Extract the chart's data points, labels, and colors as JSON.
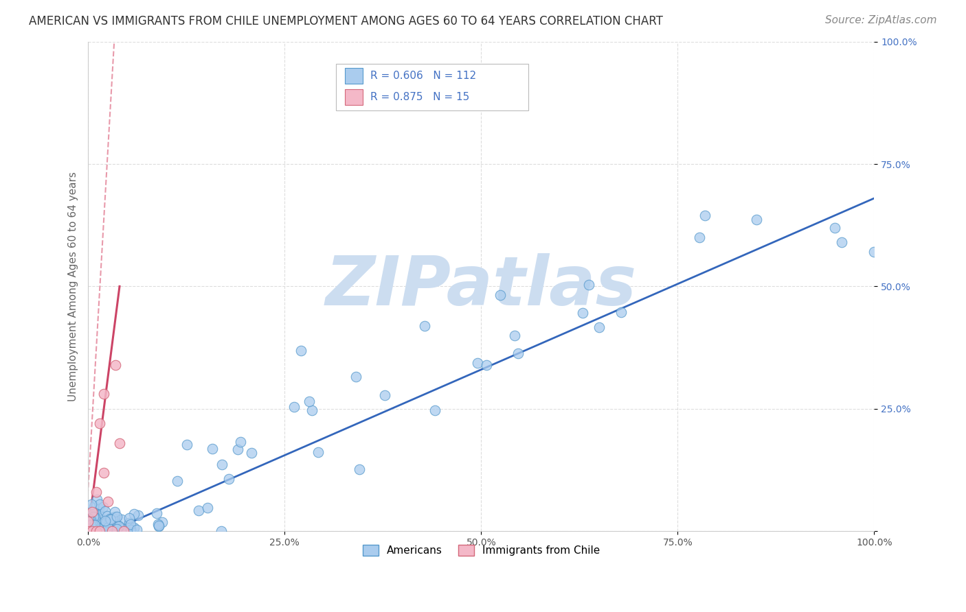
{
  "title": "AMERICAN VS IMMIGRANTS FROM CHILE UNEMPLOYMENT AMONG AGES 60 TO 64 YEARS CORRELATION CHART",
  "source": "Source: ZipAtlas.com",
  "ylabel": "Unemployment Among Ages 60 to 64 years",
  "xlim": [
    0.0,
    1.0
  ],
  "ylim": [
    0.0,
    1.0
  ],
  "x_tick_labels": [
    "0.0%",
    "25.0%",
    "50.0%",
    "75.0%",
    "100.0%"
  ],
  "x_tick_vals": [
    0.0,
    0.25,
    0.5,
    0.75,
    1.0
  ],
  "y_tick_labels": [
    "",
    "25.0%",
    "50.0%",
    "75.0%",
    "100.0%"
  ],
  "y_tick_vals": [
    0.0,
    0.25,
    0.5,
    0.75,
    1.0
  ],
  "americans_color": "#aaccee",
  "americans_edge_color": "#5599cc",
  "chile_color": "#f4b8c8",
  "chile_edge_color": "#d4687a",
  "americans_R": 0.606,
  "americans_N": 112,
  "chile_R": 0.875,
  "chile_N": 15,
  "regression_american_color": "#3366bb",
  "regression_chile_color": "#cc4466",
  "regression_chile_dashed_color": "#e899aa",
  "watermark_text": "ZIPatlas",
  "watermark_color": "#ccddf0",
  "legend_label_americans": "Americans",
  "legend_label_chile": "Immigrants from Chile",
  "background_color": "#ffffff",
  "title_fontsize": 12,
  "source_fontsize": 11,
  "axis_label_fontsize": 11,
  "tick_fontsize": 10,
  "stat_color": "#4472c4",
  "grid_color": "#dddddd",
  "grid_style": "--"
}
